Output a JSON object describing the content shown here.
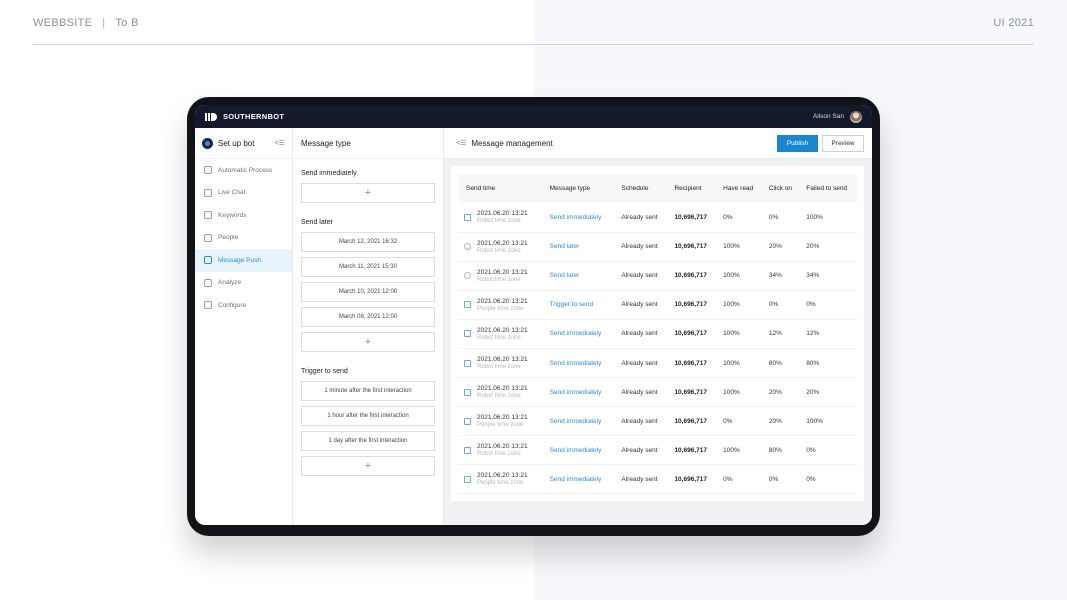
{
  "page": {
    "left_label": "WEBBSITE",
    "separator": "|",
    "category": "To B",
    "right_label": "UI 2021"
  },
  "app": {
    "brand": "SOUTHERNBOT",
    "user_name": "Alison San"
  },
  "sidebar": {
    "title": "Set up bot",
    "items": [
      {
        "label": "Automatic Process",
        "icon": "process-icon"
      },
      {
        "label": "Live Chat",
        "icon": "chat-icon"
      },
      {
        "label": "Keywords",
        "icon": "keywords-icon"
      },
      {
        "label": "People",
        "icon": "people-icon"
      },
      {
        "label": "Message Push",
        "icon": "message-push-icon",
        "active": true
      },
      {
        "label": "Analyze",
        "icon": "analyze-icon"
      },
      {
        "label": "Configure",
        "icon": "configure-icon"
      }
    ]
  },
  "message_type": {
    "title": "Message type",
    "send_immediately": "Send immediately",
    "send_later": "Send later",
    "later_items": [
      "March 12, 2021 16:32",
      "March 11, 2021 15:30",
      "March 10, 2021 12:00",
      "March 08, 2021 12:00"
    ],
    "trigger": "Trigger to send",
    "trigger_items": [
      "1 minute after the first interaction",
      "1 hour after the first interaction",
      "1 day after the first interaction"
    ],
    "add_symbol": "+"
  },
  "management": {
    "title": "Message management",
    "publish": "Publish",
    "preview": "Preview",
    "columns": [
      "Send time",
      "Message type",
      "Schedule",
      "Recipient",
      "Have read",
      "Click on",
      "Failed to send"
    ],
    "rows": [
      {
        "time": "2021.06.20 13:21",
        "zone": "Robot time zone",
        "type": "Send immediately",
        "schedule": "Already sent",
        "recipient": "10,696,717",
        "read": "0%",
        "click": "0%",
        "failed": "100%",
        "icon": "send-icon"
      },
      {
        "time": "2021.06.20 13:21",
        "zone": "Robot time zone",
        "type": "Send later",
        "schedule": "Already sent",
        "recipient": "10,696,717",
        "read": "100%",
        "click": "20%",
        "failed": "20%",
        "icon": "clock-icon"
      },
      {
        "time": "2021.06.20 13:21",
        "zone": "Robot time zone",
        "type": "Send later",
        "schedule": "Already sent",
        "recipient": "10,696,717",
        "read": "100%",
        "click": "34%",
        "failed": "34%",
        "icon": "clock-icon"
      },
      {
        "time": "2021.06.20 13:21",
        "zone": "People time zone",
        "type": "Trigger to send",
        "schedule": "Already sent",
        "recipient": "10,696,717",
        "read": "100%",
        "click": "0%",
        "failed": "0%",
        "icon": "trigger-icon"
      },
      {
        "time": "2021.06.20 13:21",
        "zone": "Robot time zone",
        "type": "Send immediately",
        "schedule": "Already sent",
        "recipient": "10,696,717",
        "read": "100%",
        "click": "12%",
        "failed": "12%",
        "icon": "send-icon"
      },
      {
        "time": "2021.06.20 13:21",
        "zone": "Robot time zone",
        "type": "Send immediately",
        "schedule": "Already sent",
        "recipient": "10,696,717",
        "read": "100%",
        "click": "80%",
        "failed": "80%",
        "icon": "send-icon"
      },
      {
        "time": "2021.06.20 13:21",
        "zone": "Robot time zone",
        "type": "Send immediately",
        "schedule": "Already sent",
        "recipient": "10,696,717",
        "read": "100%",
        "click": "20%",
        "failed": "20%",
        "icon": "send-icon"
      },
      {
        "time": "2021.06.20 13:21",
        "zone": "People time zone",
        "type": "Send immediately",
        "schedule": "Already sent",
        "recipient": "10,696,717",
        "read": "0%",
        "click": "20%",
        "failed": "100%",
        "icon": "send-icon"
      },
      {
        "time": "2021.06.20 13:21",
        "zone": "Robot time zone",
        "type": "Send immediately",
        "schedule": "Already sent",
        "recipient": "10,696,717",
        "read": "100%",
        "click": "80%",
        "failed": "0%",
        "icon": "send-icon"
      },
      {
        "time": "2021.06.20 13:21",
        "zone": "People time zone",
        "type": "Send immediately",
        "schedule": "Already sent",
        "recipient": "10,696,717",
        "read": "0%",
        "click": "0%",
        "failed": "0%",
        "icon": "send-icon"
      }
    ]
  },
  "colors": {
    "accent": "#1a86d1",
    "topbar": "#141a2c",
    "device_frame": "#111318"
  }
}
